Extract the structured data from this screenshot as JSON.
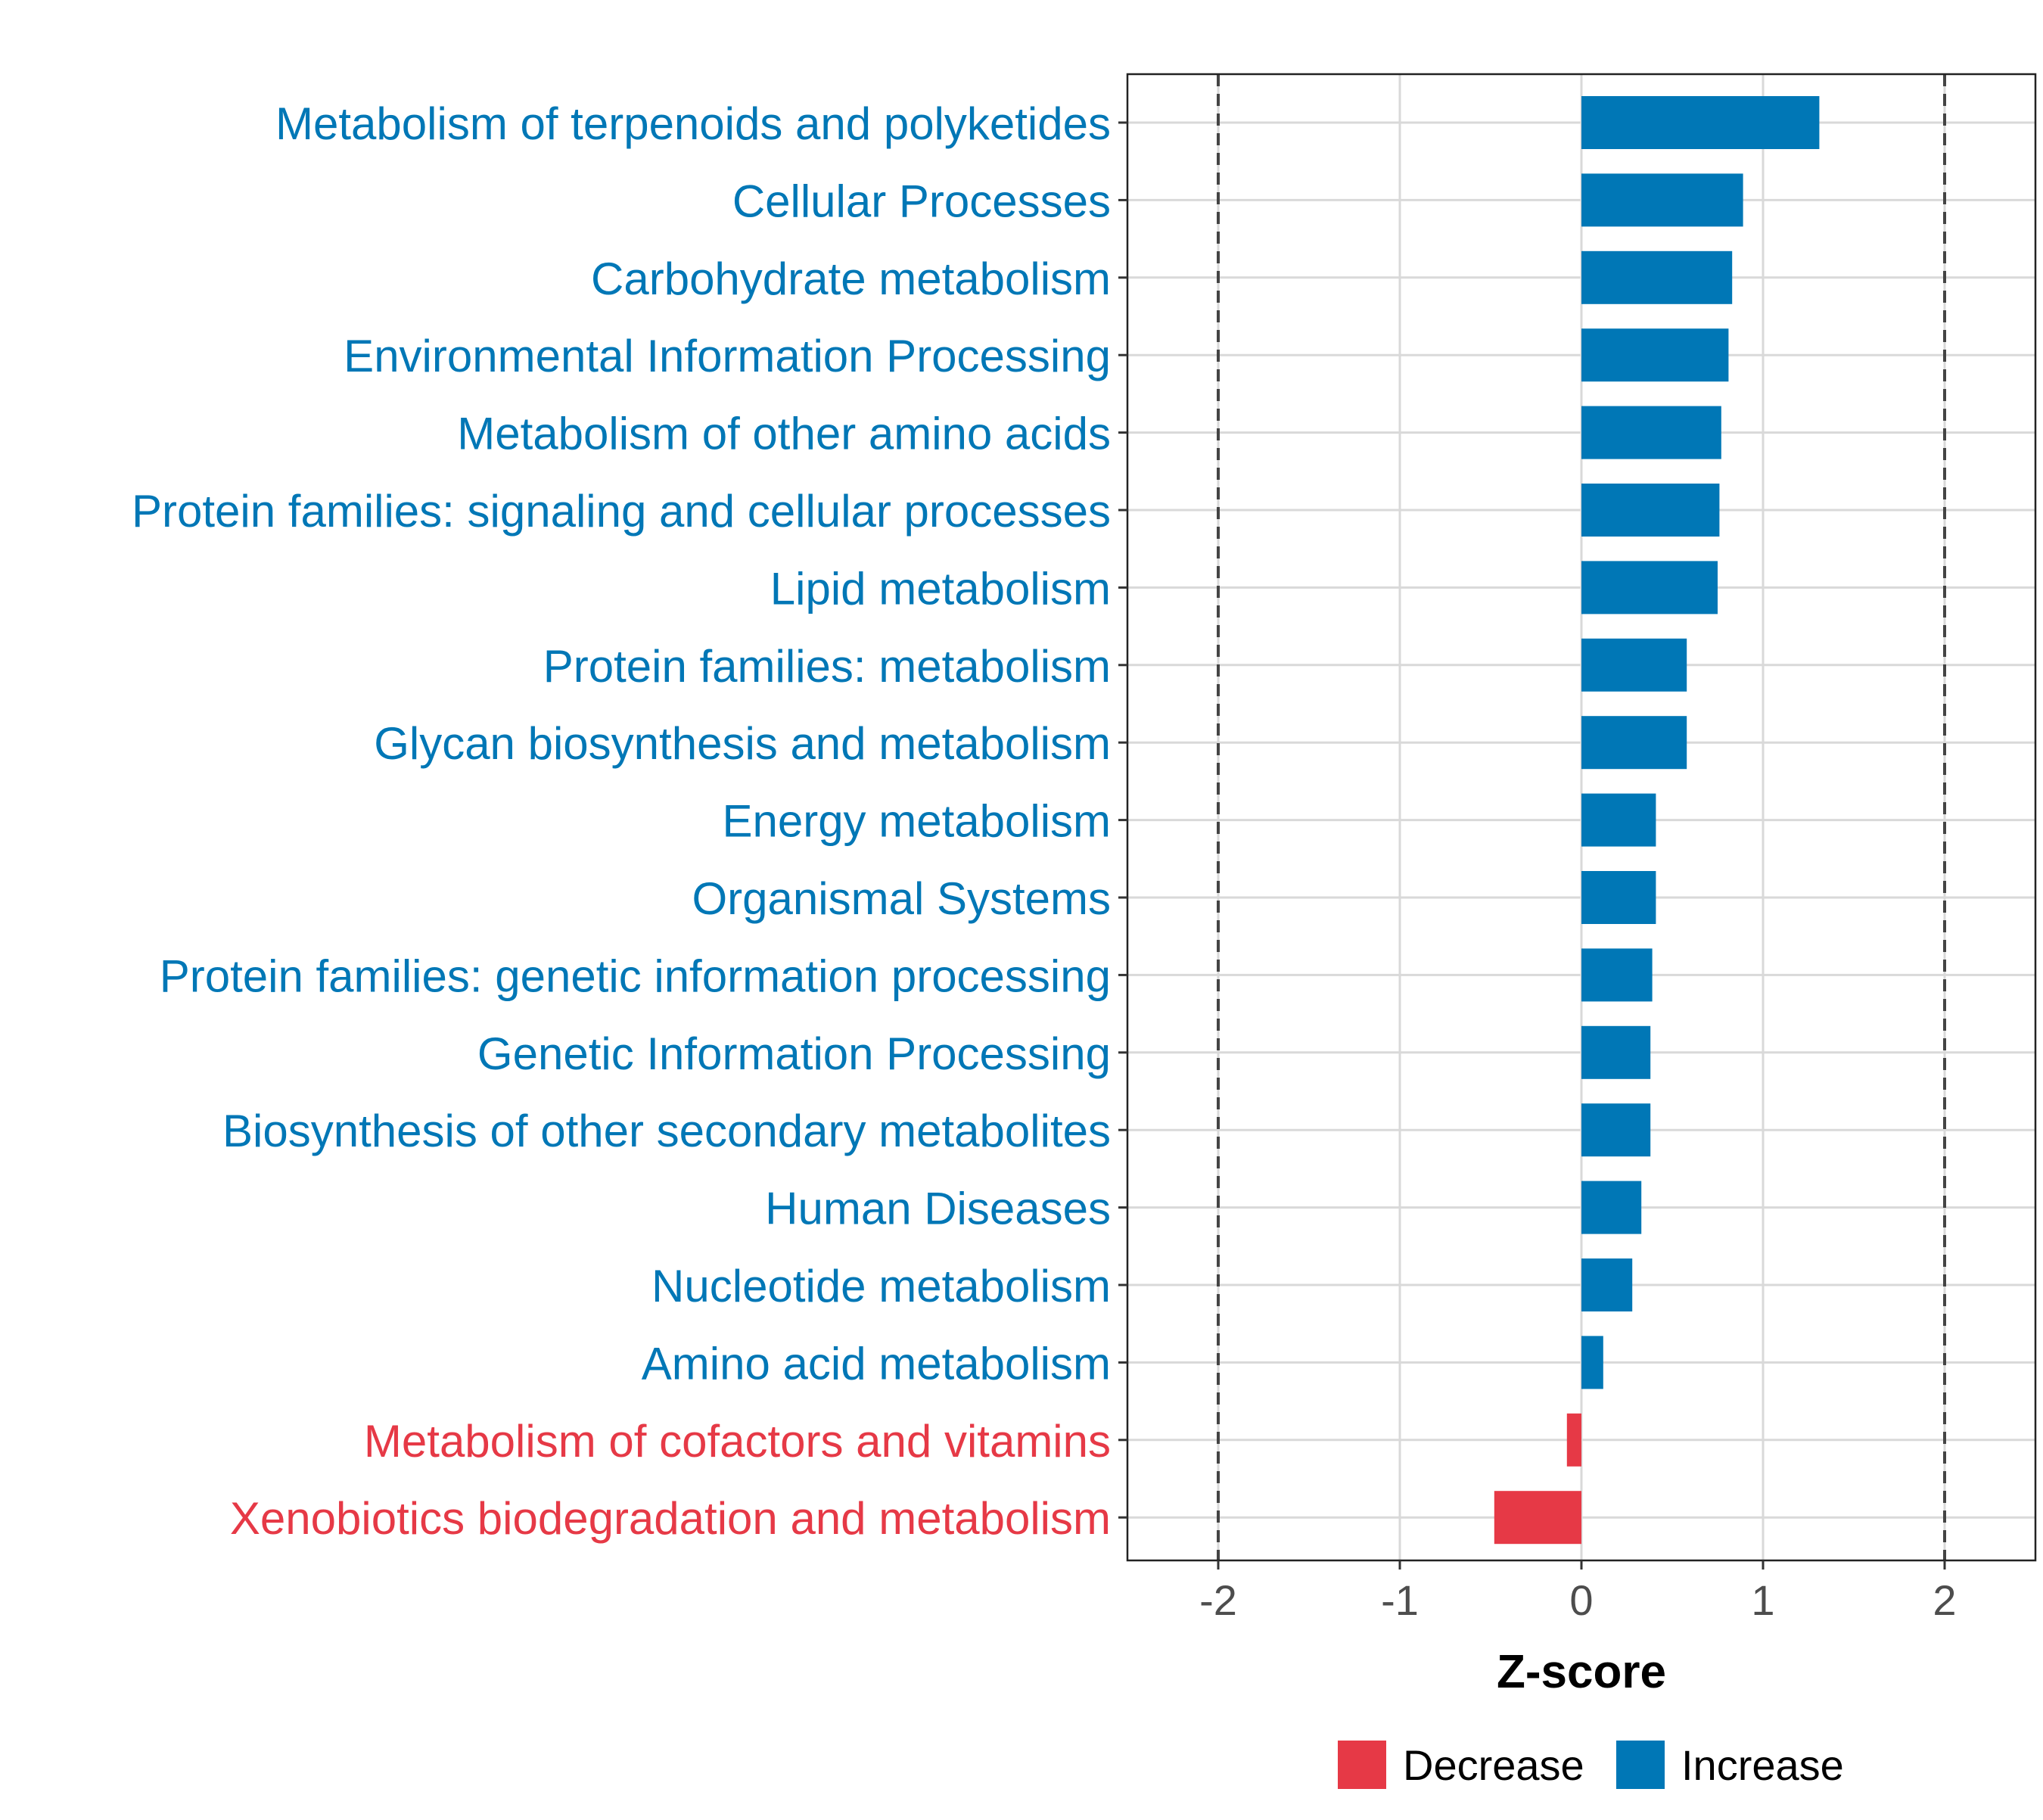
{
  "chart_data": {
    "type": "bar",
    "orientation": "horizontal",
    "xlabel": "Z-score",
    "ylabel": "",
    "xlim": [
      -2.5,
      2.5
    ],
    "xticks": [
      -2,
      -1,
      0,
      1,
      2
    ],
    "xtick_labels": [
      "-2",
      "-1",
      "0",
      "1",
      "2"
    ],
    "reference_lines": [
      -2,
      2
    ],
    "grid": true,
    "legend_position": "bottom",
    "categories": [
      "Metabolism of terpenoids and polyketides",
      "Cellular Processes",
      "Carbohydrate metabolism",
      "Environmental Information Processing",
      "Metabolism of other amino acids",
      "Protein families: signaling and cellular processes",
      "Lipid metabolism",
      "Protein families: metabolism",
      "Glycan biosynthesis and metabolism",
      "Energy metabolism",
      "Organismal Systems",
      "Protein families: genetic information processing",
      "Genetic Information Processing",
      "Biosynthesis of other secondary metabolites",
      "Human Diseases",
      "Nucleotide metabolism",
      "Amino acid metabolism",
      "Metabolism of cofactors and vitamins",
      "Xenobiotics biodegradation and metabolism"
    ],
    "values": [
      1.31,
      0.89,
      0.83,
      0.81,
      0.77,
      0.76,
      0.75,
      0.58,
      0.58,
      0.41,
      0.41,
      0.39,
      0.38,
      0.38,
      0.33,
      0.28,
      0.12,
      -0.08,
      -0.48
    ],
    "groups": [
      "Increase",
      "Increase",
      "Increase",
      "Increase",
      "Increase",
      "Increase",
      "Increase",
      "Increase",
      "Increase",
      "Increase",
      "Increase",
      "Increase",
      "Increase",
      "Increase",
      "Increase",
      "Increase",
      "Increase",
      "Decrease",
      "Decrease"
    ],
    "legend": [
      {
        "label": "Decrease",
        "color": "#e63946"
      },
      {
        "label": "Increase",
        "color": "#0077b6"
      }
    ],
    "colors": {
      "Increase": "#0077b6",
      "Decrease": "#e63946"
    }
  }
}
